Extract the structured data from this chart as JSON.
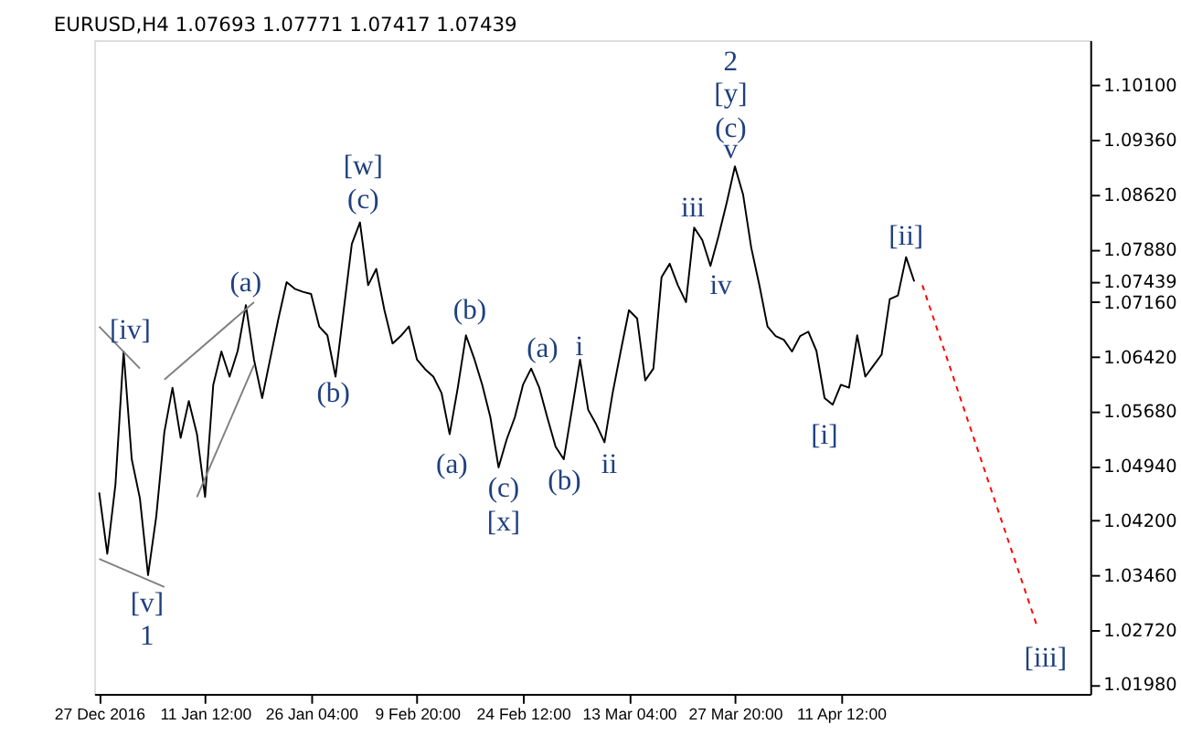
{
  "chart_data": {
    "type": "line",
    "title": "EURUSD,H4 1.07693 1.07771 1.07417 1.07439",
    "categories": [
      "27 Dec 2016",
      null,
      null,
      null,
      null,
      null,
      null,
      null,
      null,
      null,
      null,
      null,
      null,
      "11 Jan 12:00",
      null,
      null,
      null,
      null,
      null,
      null,
      null,
      null,
      null,
      null,
      null,
      null,
      "26 Jan 04:00",
      null,
      null,
      null,
      null,
      null,
      null,
      null,
      null,
      null,
      null,
      null,
      null,
      "9 Feb 20:00",
      null,
      null,
      null,
      null,
      null,
      null,
      null,
      null,
      null,
      null,
      null,
      null,
      "24 Feb 12:00",
      null,
      null,
      null,
      null,
      null,
      null,
      null,
      null,
      null,
      null,
      null,
      null,
      "13 Mar 04:00",
      null,
      null,
      null,
      null,
      null,
      null,
      null,
      null,
      null,
      null,
      null,
      null,
      "27 Mar 20:00",
      null,
      null,
      null,
      null,
      null,
      null,
      null,
      null,
      null,
      null,
      null,
      null,
      "11 Apr 12:00",
      null,
      null,
      null,
      null,
      null,
      null,
      null,
      null,
      null,
      null,
      null,
      null,
      null,
      null,
      null,
      null,
      null,
      null,
      null,
      null,
      null,
      null,
      null,
      null,
      null,
      null,
      null,
      null,
      null,
      null
    ],
    "ylim": [
      1.0185,
      1.1071
    ],
    "yticks": [
      {
        "value": 1.101,
        "label": "1.10100"
      },
      {
        "value": 1.0936,
        "label": "1.09360"
      },
      {
        "value": 1.0862,
        "label": "1.08620"
      },
      {
        "value": 1.0788,
        "label": "1.07880"
      },
      {
        "value": 1.07439,
        "label": "1.07439"
      },
      {
        "value": 1.0716,
        "label": "1.07160"
      },
      {
        "value": 1.0642,
        "label": "1.06420"
      },
      {
        "value": 1.0568,
        "label": "1.05680"
      },
      {
        "value": 1.0494,
        "label": "1.04940"
      },
      {
        "value": 1.042,
        "label": "1.04200"
      },
      {
        "value": 1.0346,
        "label": "1.03460"
      },
      {
        "value": 1.0272,
        "label": "1.02720"
      },
      {
        "value": 1.0198,
        "label": "1.01980"
      }
    ],
    "series": [
      {
        "color": "#000000",
        "values": [
          1.0458,
          1.0375,
          1.0469,
          1.0649,
          1.0503,
          1.045,
          1.0346,
          1.0425,
          1.054,
          1.06,
          1.0532,
          1.0582,
          1.0537,
          1.0452,
          1.0604,
          1.0649,
          1.0615,
          1.065,
          1.0712,
          1.0638,
          1.0586,
          1.064,
          1.0694,
          1.0743,
          1.0734,
          1.073,
          1.0727,
          1.0683,
          1.0671,
          1.0615,
          1.0705,
          1.0795,
          1.0824,
          1.0739,
          1.0761,
          1.0705,
          1.066,
          1.067,
          1.0683,
          1.0638,
          1.0625,
          1.0615,
          1.0593,
          1.0537,
          1.06,
          1.0671,
          1.064,
          1.0604,
          1.056,
          1.0492,
          1.053,
          1.056,
          1.0604,
          1.0626,
          1.06,
          1.0559,
          1.052,
          1.0503,
          1.057,
          1.0638,
          1.057,
          1.055,
          1.0526,
          1.0593,
          1.065,
          1.0705,
          1.0694,
          1.061,
          1.0626,
          1.075,
          1.0768,
          1.0739,
          1.0716,
          1.0817,
          1.08,
          1.0765,
          1.0806,
          1.0851,
          1.09,
          1.0862,
          1.079,
          1.0739,
          1.0683,
          1.067,
          1.0665,
          1.0649,
          1.067,
          1.0676,
          1.065,
          1.0586,
          1.0577,
          1.0604,
          1.06,
          1.0671,
          1.0615,
          1.063,
          1.0645,
          1.072,
          1.0725,
          1.0777,
          1.0744,
          null,
          null,
          null,
          null,
          null,
          null,
          null,
          null,
          null,
          null,
          null,
          null,
          null,
          null,
          null,
          null,
          null,
          null,
          null,
          null,
          null
        ]
      },
      {
        "color": "#808080",
        "values": [
          1.0368,
          null,
          null,
          null,
          null,
          null,
          null,
          null,
          1.033,
          null,
          null,
          null,
          null,
          null,
          null,
          null,
          null,
          null,
          null,
          null,
          null,
          null,
          null,
          null,
          null,
          null,
          null,
          null,
          null,
          null,
          null,
          null,
          null,
          null,
          null,
          null,
          null,
          null,
          null,
          null,
          null,
          null,
          null,
          null,
          null,
          null,
          null,
          null,
          null,
          null,
          null,
          null,
          null,
          null,
          null,
          null,
          null,
          null,
          null,
          null,
          null,
          null,
          null,
          null,
          null,
          null,
          null,
          null,
          null,
          null,
          null,
          null,
          null,
          null,
          null,
          null,
          null,
          null,
          null,
          null,
          null,
          null,
          null,
          null,
          null,
          null,
          null,
          null,
          null,
          null,
          null,
          null,
          null,
          null,
          null,
          null,
          null,
          null,
          null,
          null,
          null,
          null,
          null,
          null,
          null,
          null,
          null,
          null,
          null,
          null,
          null,
          null,
          null,
          null,
          null,
          null,
          null,
          null,
          null,
          null,
          null,
          null
        ]
      },
      {
        "color": "#808080",
        "values": [
          1.0683,
          null,
          null,
          null,
          null,
          1.0626,
          null,
          null,
          null,
          null,
          null,
          null,
          null,
          null,
          null,
          null,
          null,
          null,
          null,
          null,
          null,
          null,
          null,
          null,
          null,
          null,
          null,
          null,
          null,
          null,
          null,
          null,
          null,
          null,
          null,
          null,
          null,
          null,
          null,
          null,
          null,
          null,
          null,
          null,
          null,
          null,
          null,
          null,
          null,
          null,
          null,
          null,
          null,
          null,
          null,
          null,
          null,
          null,
          null,
          null,
          null,
          null,
          null,
          null,
          null,
          null,
          null,
          null,
          null,
          null,
          null,
          null,
          null,
          null,
          null,
          null,
          null,
          null,
          null,
          null,
          null,
          null,
          null,
          null,
          null,
          null,
          null,
          null,
          null,
          null,
          null,
          null,
          null,
          null,
          null,
          null,
          null,
          null,
          null,
          null,
          null,
          null,
          null,
          null,
          null,
          null,
          null,
          null,
          null,
          null,
          null,
          null,
          null,
          null,
          null,
          null,
          null,
          null,
          null,
          null,
          null,
          null
        ]
      },
      {
        "color": "#808080",
        "values": [
          null,
          null,
          null,
          null,
          null,
          null,
          null,
          null,
          1.0611,
          null,
          null,
          null,
          null,
          null,
          null,
          null,
          null,
          null,
          null,
          1.0716,
          null,
          null,
          null,
          null,
          null,
          null,
          null,
          null,
          null,
          null,
          null,
          null,
          null,
          null,
          null,
          null,
          null,
          null,
          null,
          null,
          null,
          null,
          null,
          null,
          null,
          null,
          null,
          null,
          null,
          null,
          null,
          null,
          null,
          null,
          null,
          null,
          null,
          null,
          null,
          null,
          null,
          null,
          null,
          null,
          null,
          null,
          null,
          null,
          null,
          null,
          null,
          null,
          null,
          null,
          null,
          null,
          null,
          null,
          null,
          null,
          null,
          null,
          null,
          null,
          null,
          null,
          null,
          null,
          null,
          null,
          null,
          null,
          null,
          null,
          null,
          null,
          null,
          null,
          null,
          null,
          null,
          null,
          null,
          null,
          null,
          null,
          null,
          null,
          null,
          null,
          null,
          null,
          null,
          null,
          null,
          null,
          null,
          null,
          null,
          null,
          null,
          null
        ]
      },
      {
        "color": "#808080",
        "values": [
          null,
          null,
          null,
          null,
          null,
          null,
          null,
          null,
          null,
          null,
          null,
          null,
          1.0452,
          null,
          null,
          null,
          null,
          null,
          null,
          1.0631,
          null,
          null,
          null,
          null,
          null,
          null,
          null,
          null,
          null,
          null,
          null,
          null,
          null,
          null,
          null,
          null,
          null,
          null,
          null,
          null,
          null,
          null,
          null,
          null,
          null,
          null,
          null,
          null,
          null,
          null,
          null,
          null,
          null,
          null,
          null,
          null,
          null,
          null,
          null,
          null,
          null,
          null,
          null,
          null,
          null,
          null,
          null,
          null,
          null,
          null,
          null,
          null,
          null,
          null,
          null,
          null,
          null,
          null,
          null,
          null,
          null,
          null,
          null,
          null,
          null,
          null,
          null,
          null,
          null,
          null,
          null,
          null,
          null,
          null,
          null,
          null,
          null,
          null,
          null,
          null,
          null,
          null,
          null,
          null,
          null,
          null,
          null,
          null,
          null,
          null,
          null,
          null,
          null,
          null,
          null,
          null,
          null,
          null,
          null,
          null,
          null,
          null
        ]
      },
      {
        "color": "#ff0000",
        "line_style": "dashed",
        "values": [
          null,
          null,
          null,
          null,
          null,
          null,
          null,
          null,
          null,
          null,
          null,
          null,
          null,
          null,
          null,
          null,
          null,
          null,
          null,
          null,
          null,
          null,
          null,
          null,
          null,
          null,
          null,
          null,
          null,
          null,
          null,
          null,
          null,
          null,
          null,
          null,
          null,
          null,
          null,
          null,
          null,
          null,
          null,
          null,
          null,
          null,
          null,
          null,
          null,
          null,
          null,
          null,
          null,
          null,
          null,
          null,
          null,
          null,
          null,
          null,
          null,
          null,
          null,
          null,
          null,
          null,
          null,
          null,
          null,
          null,
          null,
          null,
          null,
          null,
          null,
          null,
          null,
          null,
          null,
          null,
          null,
          null,
          null,
          null,
          null,
          null,
          null,
          null,
          null,
          null,
          null,
          null,
          null,
          null,
          null,
          null,
          null,
          null,
          null,
          null,
          null,
          1.0739,
          null,
          null,
          null,
          null,
          null,
          null,
          null,
          null,
          null,
          null,
          null,
          null,
          null,
          1.0279,
          null,
          null,
          null,
          null,
          null,
          null
        ]
      }
    ],
    "annotations": [
      "[iv]",
      "[v]",
      "1",
      "(a)",
      "(b)",
      "(c)",
      "[w]",
      "(b)",
      "(a)",
      "(c)",
      "[x]",
      "(a)",
      "i",
      "(b)",
      "ii",
      "iii",
      "iv",
      "v",
      "(c)",
      "[y]",
      "2",
      "[i]",
      "[ii]",
      "[iii]"
    ]
  }
}
